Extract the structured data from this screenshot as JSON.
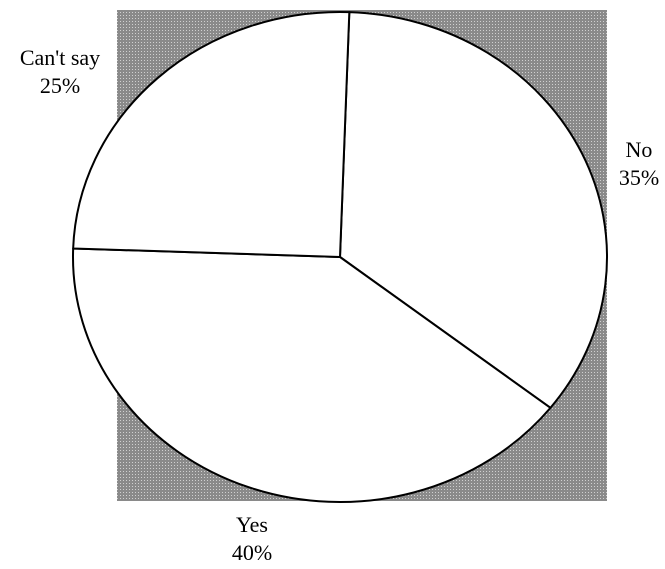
{
  "chart_data": {
    "type": "pie",
    "title": "",
    "slices": [
      {
        "label": "No",
        "value": 35,
        "value_label": "35%"
      },
      {
        "label": "Yes",
        "value": 40,
        "value_label": "40%"
      },
      {
        "label": "Can't say",
        "value": 25,
        "value_label": "25%"
      }
    ],
    "start_angle_deg": 2,
    "direction": "clockwise",
    "slice_fill": "#ffffff",
    "background_fill": "#9e9e9e",
    "outline_color": "#000000",
    "legend": "none"
  }
}
